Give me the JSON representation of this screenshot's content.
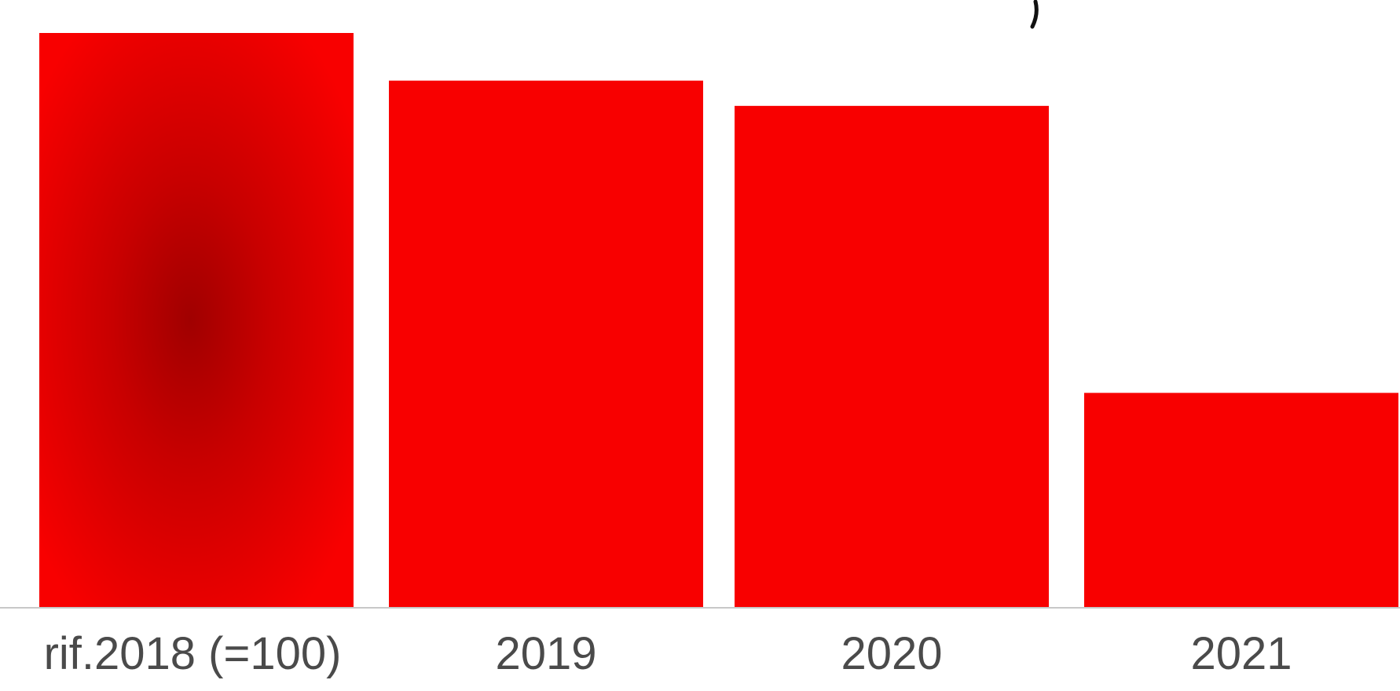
{
  "chart_data": {
    "type": "bar",
    "categories": [
      "rif.2018 (=100)",
      "2019",
      "2020",
      "2021"
    ],
    "values": [
      100,
      91.7,
      87.3,
      37.3
    ],
    "ylim": [
      0,
      100
    ],
    "grid": false,
    "legend": "none",
    "colors": {
      "bar": "#f80000",
      "highlight_center": "#a00000",
      "highlight_mid": "#c80000",
      "baseline": "#c8c8c8",
      "tick_text": "#4a4a4a"
    }
  }
}
